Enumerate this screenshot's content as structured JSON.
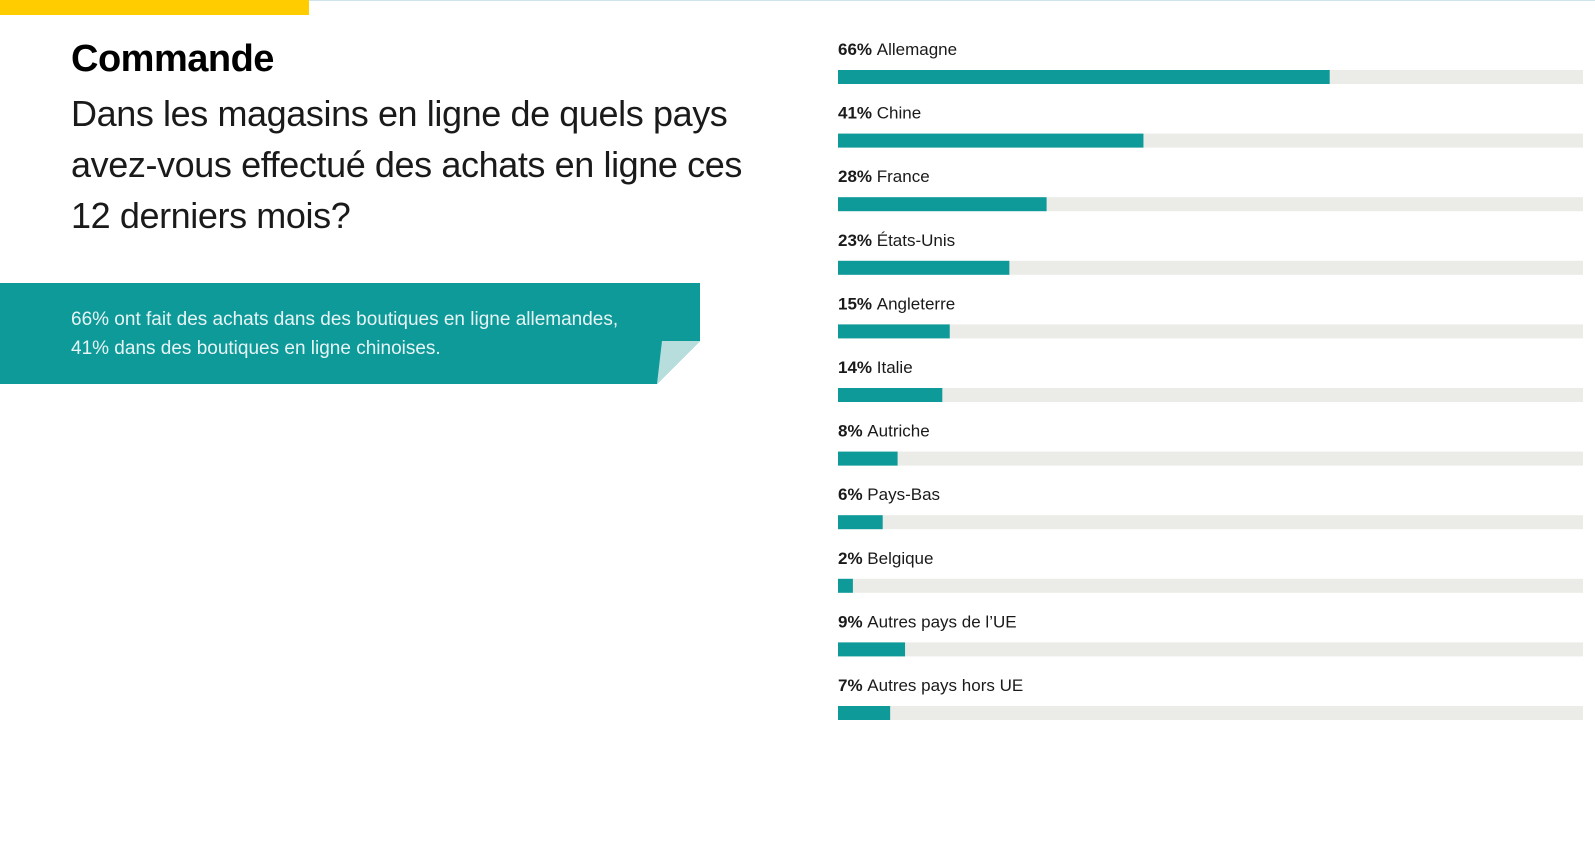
{
  "header": {
    "section_title": "Commande",
    "question": "Dans les magasins en ligne de quels pays avez-vous effectué des achats en ligne ces 12 derniers mois?"
  },
  "callout": {
    "text_line1": "66% ont fait des achats dans des boutiques en ligne allemandes,",
    "text_line2": "41% dans des boutiques en ligne chinoises."
  },
  "colors": {
    "accent": "#ffcc00",
    "bar_fill": "#0f9a9a",
    "bar_track": "#ebebe8",
    "callout_bg": "#0f9a9a",
    "callout_fold": "#b7dedd"
  },
  "chart_data": {
    "type": "bar",
    "orientation": "horizontal",
    "xlim": [
      0,
      100
    ],
    "categories": [
      "Allemagne",
      "Chine",
      "France",
      "États-Unis",
      "Angleterre",
      "Italie",
      "Autriche",
      "Pays-Bas",
      "Belgique",
      "Autres pays de l’UE",
      "Autres pays hors UE"
    ],
    "values": [
      66,
      41,
      28,
      23,
      15,
      14,
      8,
      6,
      2,
      9,
      7
    ],
    "value_labels": [
      "66%",
      "41%",
      "28%",
      "23%",
      "15%",
      "14%",
      "8%",
      "6%",
      "2%",
      "9%",
      "7%"
    ]
  }
}
